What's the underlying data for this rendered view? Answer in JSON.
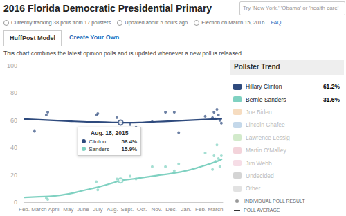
{
  "page": {
    "title": "2016 Florida Democratic Presidential Primary",
    "search_placeholder": "Try 'New York,' 'Obama' or 'health care'",
    "status": [
      "Currently tracking 38 polls from 17 pollsters",
      "Updated about 5 hours ago",
      "Election on March 15, 2016"
    ],
    "faq": "FAQ",
    "tabs": [
      "HuffPost Model",
      "Create Your Own"
    ],
    "description": "This chart combines the latest opinion polls and is updated whenever a new poll is released.",
    "pollster_trend": {
      "title": "Pollster Trend",
      "entries": [
        {
          "name": "Hillary Clinton",
          "label": "61.2%"
        },
        {
          "name": "Bernie Sanders",
          "label": "31.6%"
        },
        {
          "name": "Joe Biden",
          "color": "#f6dcc0"
        },
        {
          "name": "Lincoln Chafee",
          "color": "#c4d8ea"
        },
        {
          "name": "Lawrence Lessig",
          "color": "#d2eacb"
        },
        {
          "name": "Martin O'Malley",
          "color": "#f3d3da"
        },
        {
          "name": "Jim Webb",
          "color": "#f6dde6"
        },
        {
          "name": "Undecided",
          "color": "#d4d4d4"
        },
        {
          "name": "Other",
          "color": "#e2e2e2"
        }
      ]
    },
    "legend_items": [
      "INDIVIDUAL POLL RESULT",
      "POLL AVERAGE"
    ]
  },
  "chart_data": {
    "type": "line",
    "grid": false,
    "xlim": [
      0,
      13.5
    ],
    "xticks": [
      {
        "value": 0,
        "label": "Feb."
      },
      {
        "value": 1,
        "label": "March"
      },
      {
        "value": 2,
        "label": "April"
      },
      {
        "value": 3,
        "label": "May"
      },
      {
        "value": 4,
        "label": "June"
      },
      {
        "value": 5,
        "label": "July"
      },
      {
        "value": 6,
        "label": "Aug."
      },
      {
        "value": 7,
        "label": "Sept."
      },
      {
        "value": 8,
        "label": "Oct."
      },
      {
        "value": 9,
        "label": "Nov."
      },
      {
        "value": 10,
        "label": "Dec."
      },
      {
        "value": 11,
        "label": "Jan."
      },
      {
        "value": 12,
        "label": "Feb."
      },
      {
        "value": 13,
        "label": "March"
      }
    ],
    "ylim": [
      0,
      100
    ],
    "yticks": [
      0,
      20,
      40,
      60,
      80,
      100
    ],
    "series": [
      {
        "name": "Hillary Clinton",
        "color": "#2e4a7d",
        "x": [
          0,
          1,
          2,
          3,
          4,
          5,
          6,
          6.55,
          7,
          8,
          9,
          10,
          11,
          12,
          13,
          13.45
        ],
        "values": [
          61,
          60.5,
          60,
          59.5,
          59,
          58.8,
          58.5,
          58.4,
          58.3,
          58.5,
          59,
          59.5,
          60,
          60.5,
          61,
          61.2
        ],
        "polls": {
          "x": [
            0.7,
            1.5,
            1.6,
            4.9,
            5.0,
            6.3,
            7.2,
            7.6,
            8.7,
            9.6,
            10.2,
            10.5,
            12.3,
            12.8,
            12.9,
            13.0,
            13.1,
            13.2,
            13.3,
            13.4
          ],
          "values": [
            52,
            64,
            66,
            64,
            65,
            62,
            57,
            55,
            59,
            66,
            66,
            51,
            63,
            62,
            66,
            61,
            68,
            64,
            60,
            58
          ]
        }
      },
      {
        "name": "Bernie Sanders",
        "color": "#7fd1c1",
        "x": [
          0,
          1,
          2,
          3,
          4,
          5,
          6,
          6.55,
          7,
          8,
          9,
          10,
          11,
          12,
          13,
          13.45
        ],
        "values": [
          3.5,
          4,
          4.5,
          6,
          8.5,
          11,
          14,
          15.9,
          16.5,
          18,
          19.5,
          21,
          23,
          26,
          29.5,
          31.6
        ],
        "polls": {
          "x": [
            1.5,
            1.6,
            4.9,
            5.0,
            6.3,
            7.2,
            7.6,
            8.7,
            9.6,
            10.2,
            10.5,
            12.3,
            12.8,
            12.9,
            13.0,
            13.1,
            13.2,
            13.3,
            13.4
          ],
          "values": [
            3,
            2,
            15,
            9,
            17,
            19,
            17,
            26,
            26,
            23,
            28,
            36,
            24,
            34,
            30,
            42,
            32,
            26,
            34
          ]
        }
      }
    ],
    "annotation": {
      "title": "Aug. 18, 2015",
      "x": 6.55,
      "entries": [
        {
          "name": "Clinton",
          "value": 58.4,
          "label": "58.4%"
        },
        {
          "name": "Sanders",
          "value": 15.9,
          "label": "15.9%"
        }
      ]
    }
  }
}
